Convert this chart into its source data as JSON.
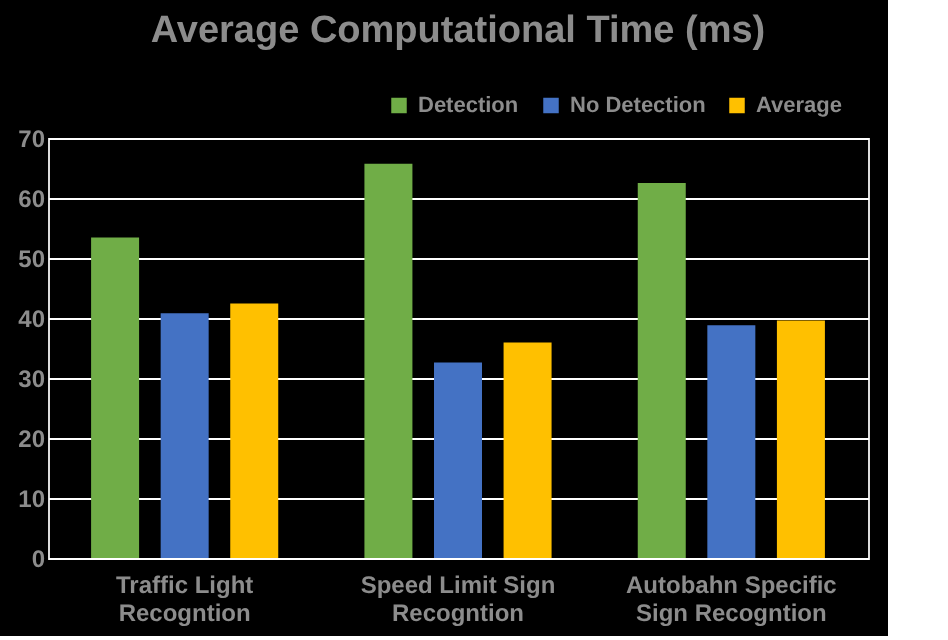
{
  "chart_data": {
    "type": "bar",
    "title": "Average Computational Time  (ms)",
    "categories": [
      "Traffic Light\nRecogntion",
      "Speed Limit Sign\nRecogntion",
      "Autobahn Specific\nSign Recogntion"
    ],
    "series": [
      {
        "name": "Detection",
        "color": "#70ad47",
        "values": [
          53.4,
          65.7,
          62.5
        ]
      },
      {
        "name": "No Detection",
        "color": "#4472c4",
        "values": [
          40.8,
          32.6,
          38.8
        ]
      },
      {
        "name": "Average",
        "color": "#ffc000",
        "values": [
          42.4,
          35.9,
          39.6
        ]
      }
    ],
    "ylim": [
      0,
      70
    ],
    "yticks": [
      0,
      10,
      20,
      30,
      40,
      50,
      60,
      70
    ],
    "grid": "y",
    "legend": "top right"
  }
}
